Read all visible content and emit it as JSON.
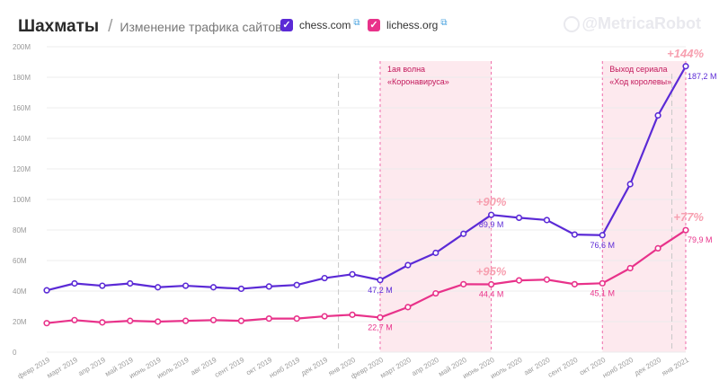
{
  "header": {
    "title": "Шахматы",
    "separator": "/",
    "subtitle": "Изменение трафика сайтов",
    "watermark": "@MetricaRobot"
  },
  "legend": [
    {
      "label": "chess.com",
      "color": "#5b2ad6",
      "icon": "checkbox-checked-icon",
      "link_icon": "external-link-icon"
    },
    {
      "label": "lichess.org",
      "color": "#e8328a",
      "icon": "checkbox-checked-icon",
      "link_icon": "external-link-icon"
    }
  ],
  "chart_data": {
    "type": "line",
    "title": "Шахматы",
    "subtitle": "Изменение трафика сайтов",
    "categories": [
      "февр 2019",
      "март 2019",
      "апр 2019",
      "май 2019",
      "июнь 2019",
      "июль 2019",
      "авг 2019",
      "сент 2019",
      "окт 2019",
      "нояб 2019",
      "дек 2019",
      "янв 2020",
      "февр 2020",
      "март 2020",
      "апр 2020",
      "май 2020",
      "июнь 2020",
      "июль 2020",
      "авг 2020",
      "сент 2020",
      "окт 2020",
      "нояб 2020",
      "дек 2020",
      "янв 2021"
    ],
    "y_ticks": [
      "0",
      "20M",
      "40M",
      "60M",
      "80M",
      "100M",
      "120M",
      "140M",
      "160M",
      "180M",
      "200M"
    ],
    "ylim": [
      0,
      200
    ],
    "grid": true,
    "series": [
      {
        "name": "chess.com",
        "color": "#5b2ad6",
        "values": [
          40.5,
          45,
          43.5,
          45,
          42.5,
          43.5,
          42.5,
          41.5,
          43,
          44,
          48.5,
          51,
          47.2,
          57,
          65,
          77.5,
          89.9,
          88,
          86.5,
          77,
          76.6,
          110,
          155,
          187.2
        ]
      },
      {
        "name": "lichess.org",
        "color": "#e8328a",
        "values": [
          19,
          21,
          19.5,
          20.5,
          20,
          20.5,
          21,
          20.5,
          22,
          22,
          23.5,
          24.5,
          22.7,
          29.5,
          38.5,
          44.5,
          44.4,
          47,
          47.5,
          44.5,
          45.1,
          55,
          68,
          79.9
        ]
      }
    ],
    "point_labels": [
      {
        "series": 0,
        "index": 12,
        "text": "47,2 M"
      },
      {
        "series": 0,
        "index": 16,
        "text": "89,9 M"
      },
      {
        "series": 0,
        "index": 20,
        "text": "76,6 M"
      },
      {
        "series": 0,
        "index": 23,
        "text": "187,2 M"
      },
      {
        "series": 1,
        "index": 12,
        "text": "22,7 M"
      },
      {
        "series": 1,
        "index": 16,
        "text": "44,4 M"
      },
      {
        "series": 1,
        "index": 20,
        "text": "45,1 M"
      },
      {
        "series": 1,
        "index": 23,
        "text": "79,9 M"
      }
    ],
    "growth_labels": [
      {
        "series": 0,
        "index": 16,
        "text": "+90%"
      },
      {
        "series": 1,
        "index": 16,
        "text": "+95%"
      },
      {
        "series": 0,
        "index": 23,
        "text": "+144%"
      },
      {
        "series": 1,
        "index": 23,
        "text": "+77%"
      }
    ],
    "periods": [
      {
        "start": 12,
        "end": 16,
        "label_lines": [
          "1ая волна",
          "«Коронавируса»"
        ]
      },
      {
        "start": 20,
        "end": 23,
        "label_lines": [
          "Выход сериала",
          "«Ход королевы»"
        ]
      }
    ],
    "reference_lines": [
      10.5,
      22.5
    ]
  }
}
